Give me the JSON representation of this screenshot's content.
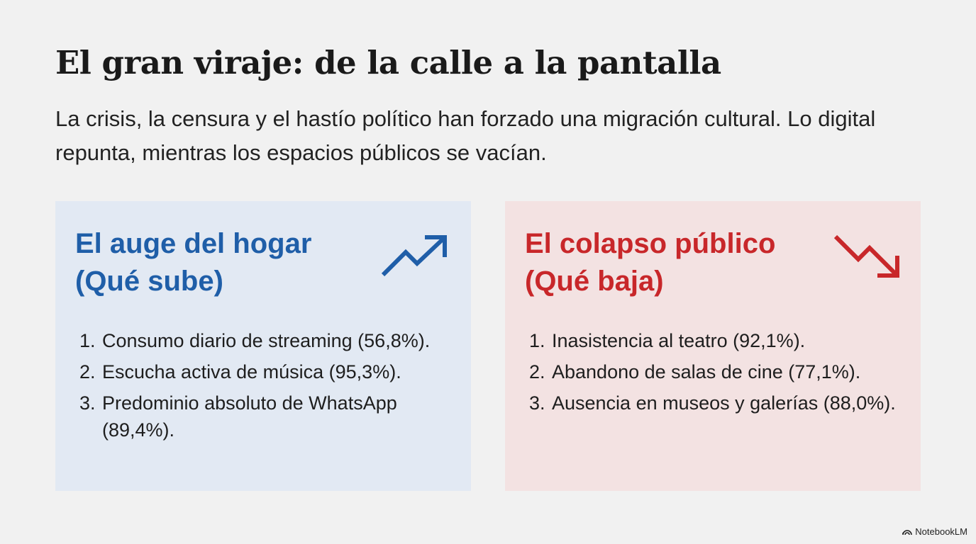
{
  "title": "El gran viraje: de la calle a la pantalla",
  "subtitle": "La crisis, la censura y el hastío político han forzado una migración cultural. Lo digital repunta, mientras los espacios públicos se vacían.",
  "cards": [
    {
      "heading_line1": "El auge del hogar",
      "heading_line2": "(Qué sube)",
      "icon": "trending-up-icon",
      "color": "#1f5ea8",
      "items": [
        "Consumo diario de streaming (56,8%).",
        "Escucha activa de música (95,3%).",
        "Predominio absoluto de WhatsApp (89,4%)."
      ]
    },
    {
      "heading_line1": "El colapso público",
      "heading_line2": "(Qué baja)",
      "icon": "trending-down-icon",
      "color": "#c8272a",
      "items": [
        "Inasistencia al teatro (92,1%).",
        "Abandono de salas de cine (77,1%).",
        "Ausencia en museos y galerías (88,0%)."
      ]
    }
  ],
  "brand": "NotebookLM"
}
